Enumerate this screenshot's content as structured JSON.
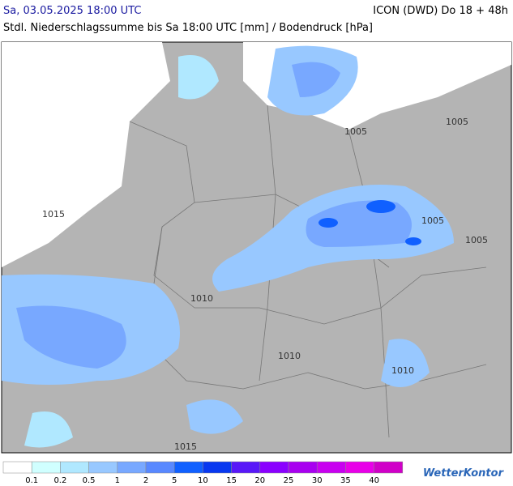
{
  "header": {
    "datetime": "Sa, 03.05.2025 18:00 UTC",
    "model": "ICON (DWD) Do 18 + 48h",
    "subtitle": "Stdl. Niederschlagssumme bis Sa 18:00 UTC [mm] / Bodendruck [hPa]"
  },
  "map": {
    "isobar_labels": [
      "1005",
      "1005",
      "1015",
      "1005",
      "1005",
      "1010",
      "1010",
      "1010",
      "1015"
    ]
  },
  "legend": {
    "labels": [
      "0.1",
      "0.2",
      "0.5",
      "1",
      "2",
      "5",
      "10",
      "15",
      "20",
      "25",
      "30",
      "35",
      "40"
    ]
  },
  "brand": "WetterKontor"
}
